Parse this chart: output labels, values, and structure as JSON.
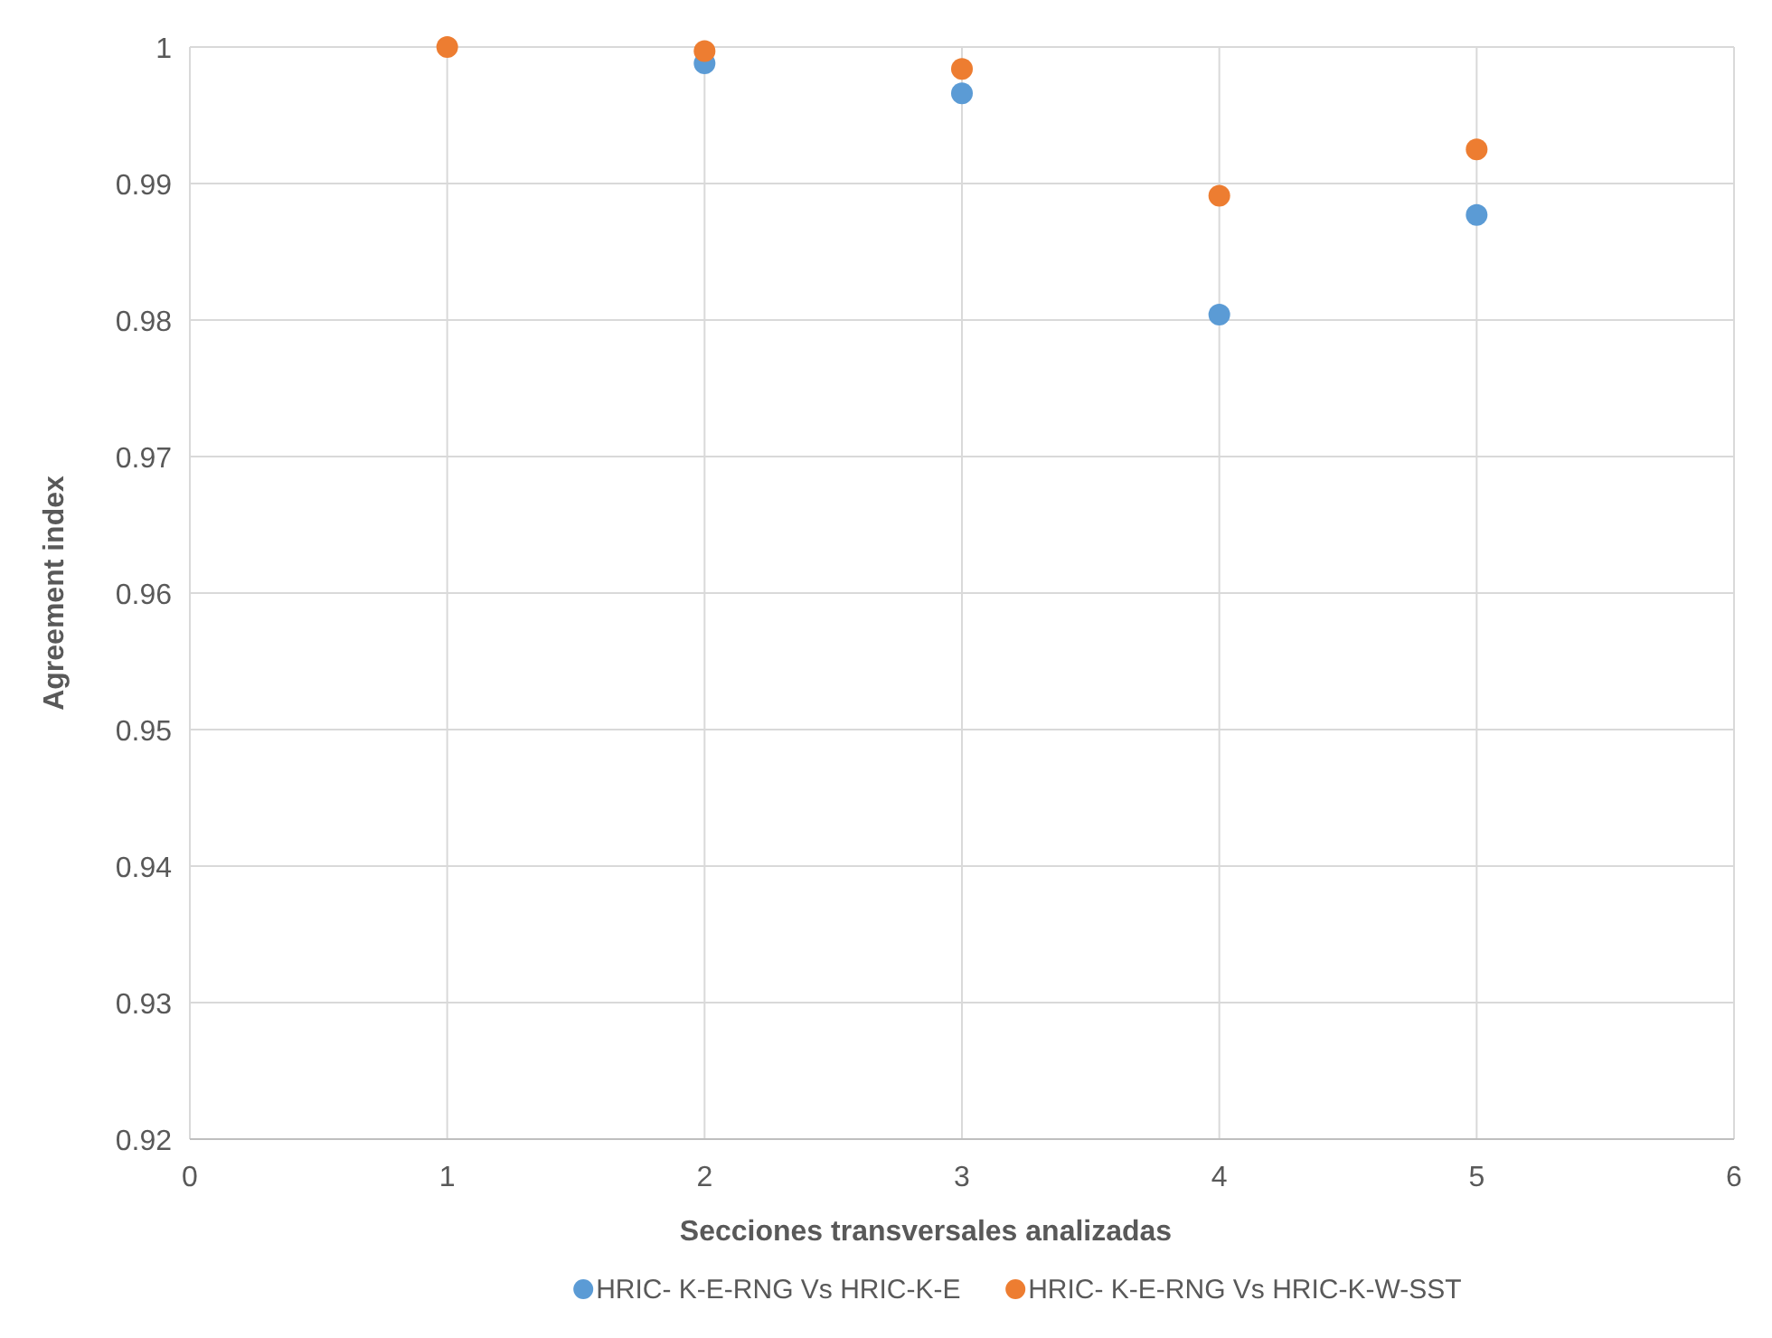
{
  "chart_data": {
    "type": "scatter",
    "xlabel": "Secciones transversales analizadas",
    "ylabel": "Agreement index",
    "x": [
      1,
      2,
      3,
      4,
      5
    ],
    "series": [
      {
        "name": "HRIC- K-E-RNG Vs HRIC-K-E",
        "color": "#5b9bd5",
        "values": [
          null,
          0.9988,
          0.9966,
          0.9804,
          0.9877
        ]
      },
      {
        "name": "HRIC- K-E-RNG Vs HRIC-K-W-SST",
        "color": "#ed7d31",
        "values": [
          1.0,
          0.9997,
          0.9984,
          0.9891,
          0.9925
        ]
      }
    ],
    "xlim": [
      0,
      6
    ],
    "xticks": [
      0,
      1,
      2,
      3,
      4,
      5,
      6
    ],
    "ylim": [
      0.92,
      1
    ],
    "yticks": [
      0.92,
      0.93,
      0.94,
      0.95,
      0.96,
      0.97,
      0.98,
      0.99,
      1
    ],
    "grid": true,
    "legend": "bottom",
    "marker": "circle"
  }
}
